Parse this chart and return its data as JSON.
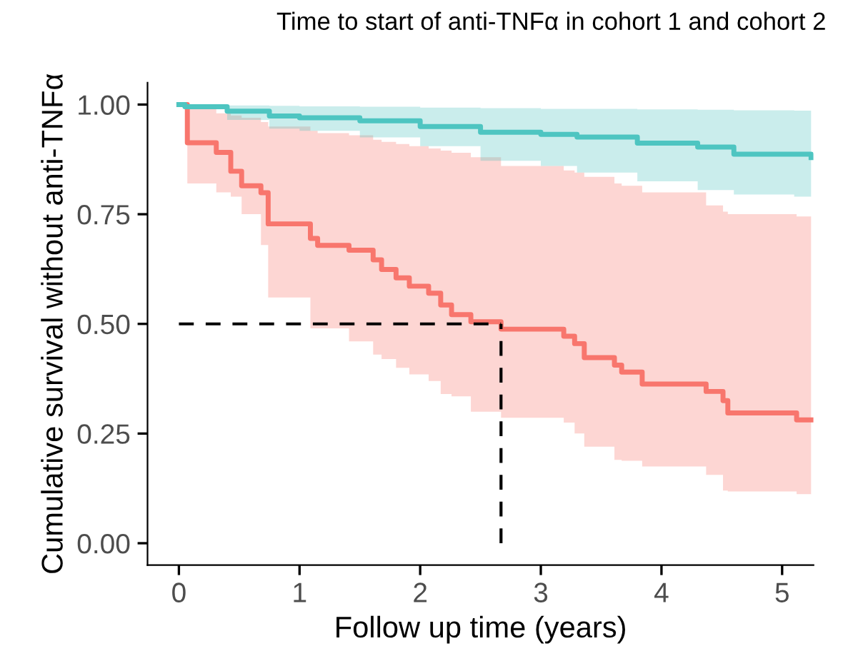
{
  "chart_data": {
    "type": "step",
    "title": "Time to start of anti-TNFα in cohort 1 and cohort 2",
    "xlabel": "Follow up time (years)",
    "ylabel": "Cumulative survival without anti-TNFα",
    "xlim": [
      -0.26,
      5.26
    ],
    "xticks": [
      0,
      1,
      2,
      3,
      4,
      5
    ],
    "ylim": [
      -0.05,
      1.05
    ],
    "yticks": [
      {
        "value": 0,
        "label": "0.00"
      },
      {
        "value": 0.25,
        "label": "0.25"
      },
      {
        "value": 0.5,
        "label": "0.50"
      },
      {
        "value": 0.75,
        "label": "0.75"
      },
      {
        "value": 1,
        "label": "1.00"
      }
    ],
    "grid": false,
    "series": [
      {
        "color": "#f8766d",
        "x": [
          0,
          0.07,
          0.31,
          0.43,
          0.52,
          0.68,
          0.74,
          1.09,
          1.15,
          1.41,
          1.61,
          1.68,
          1.8,
          1.91,
          2.07,
          2.17,
          2.26,
          2.42,
          2.67,
          3.19,
          3.28,
          3.36,
          3.61,
          3.67,
          3.84,
          4.37,
          4.51,
          4.55,
          5.12,
          5.24
        ],
        "values": [
          1.0,
          0.913,
          0.891,
          0.848,
          0.815,
          0.799,
          0.728,
          0.695,
          0.679,
          0.668,
          0.646,
          0.624,
          0.605,
          0.586,
          0.57,
          0.543,
          0.521,
          0.505,
          0.488,
          0.472,
          0.455,
          0.423,
          0.406,
          0.39,
          0.363,
          0.346,
          0.325,
          0.297,
          0.281,
          0.281
        ],
        "lower": [
          1.0,
          0.82,
          0.8,
          0.79,
          0.75,
          0.68,
          0.56,
          0.49,
          0.49,
          0.46,
          0.43,
          0.42,
          0.4,
          0.385,
          0.37,
          0.34,
          0.335,
          0.3,
          0.286,
          0.275,
          0.25,
          0.22,
          0.19,
          0.188,
          0.175,
          0.156,
          0.12,
          0.118,
          0.112,
          0.112
        ],
        "upper": [
          1.0,
          0.99,
          0.98,
          0.975,
          0.97,
          0.96,
          0.95,
          0.94,
          0.935,
          0.93,
          0.92,
          0.915,
          0.91,
          0.905,
          0.9,
          0.895,
          0.89,
          0.88,
          0.86,
          0.85,
          0.845,
          0.835,
          0.82,
          0.815,
          0.8,
          0.77,
          0.756,
          0.75,
          0.745,
          0.745
        ]
      },
      {
        "color": "#4ec5c1",
        "x": [
          0,
          0.05,
          0.4,
          0.75,
          1.0,
          1.5,
          2.0,
          2.5,
          3.0,
          3.3,
          3.8,
          4.3,
          4.6,
          5.1,
          5.24
        ],
        "values": [
          1.0,
          0.995,
          0.985,
          0.974,
          0.97,
          0.963,
          0.95,
          0.937,
          0.932,
          0.926,
          0.912,
          0.903,
          0.887,
          0.887,
          0.879
        ],
        "lower": [
          1.0,
          0.99,
          0.965,
          0.945,
          0.94,
          0.925,
          0.905,
          0.872,
          0.86,
          0.845,
          0.825,
          0.805,
          0.795,
          0.79,
          0.79
        ],
        "upper": [
          1.0,
          1.0,
          0.998,
          0.997,
          0.996,
          0.995,
          0.993,
          0.992,
          0.99,
          0.99,
          0.989,
          0.988,
          0.987,
          0.986,
          0.985
        ]
      }
    ],
    "ref_lines": [
      {
        "axis": "y",
        "value": 0.5,
        "color": "#000000",
        "line_style": "dashed"
      },
      {
        "axis": "x",
        "value": 2.67,
        "color": "#000000",
        "line_style": "dashed"
      }
    ]
  }
}
